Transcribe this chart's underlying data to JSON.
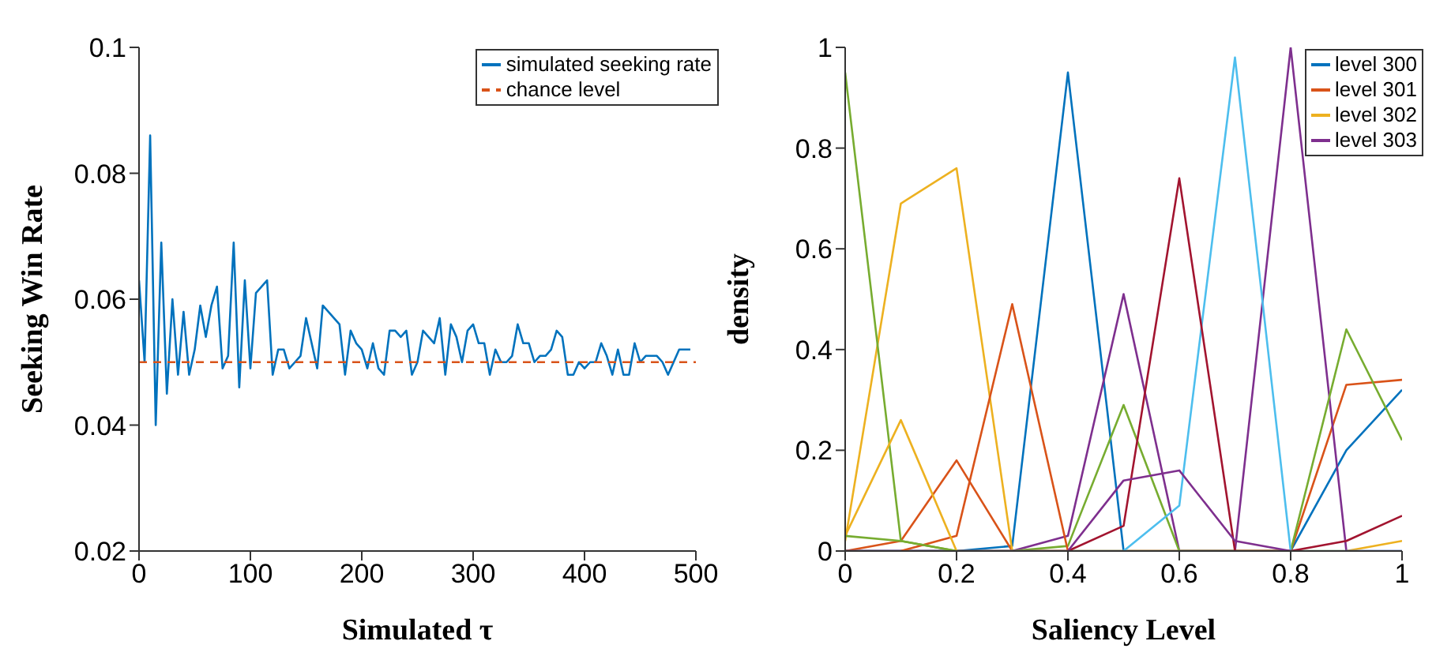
{
  "chart_data": [
    {
      "type": "line",
      "xlabel": "Simulated τ",
      "ylabel": "Seeking Win Rate",
      "xlim": [
        0,
        500
      ],
      "xticks": [
        0,
        100,
        200,
        300,
        400,
        500
      ],
      "ylim": [
        0.02,
        0.1
      ],
      "yticks": [
        0.02,
        0.04,
        0.06,
        0.08,
        0.1
      ],
      "grid": false,
      "legend": "top right",
      "marker": "none",
      "series": [
        {
          "name": "simulated seeking rate",
          "color": "#0072bd",
          "line_style": "solid",
          "x": [
            0,
            5,
            10,
            15,
            20,
            25,
            30,
            35,
            40,
            45,
            50,
            55,
            60,
            65,
            70,
            75,
            80,
            85,
            90,
            95,
            100,
            105,
            110,
            115,
            120,
            125,
            130,
            135,
            140,
            145,
            150,
            155,
            160,
            165,
            170,
            175,
            180,
            185,
            190,
            195,
            200,
            205,
            210,
            215,
            220,
            225,
            230,
            235,
            240,
            245,
            250,
            255,
            260,
            265,
            270,
            275,
            280,
            285,
            290,
            295,
            300,
            305,
            310,
            315,
            320,
            325,
            330,
            335,
            340,
            345,
            350,
            355,
            360,
            365,
            370,
            375,
            380,
            385,
            390,
            395,
            400,
            405,
            410,
            415,
            420,
            425,
            430,
            435,
            440,
            445,
            450,
            455,
            460,
            465,
            470,
            475,
            480,
            485,
            490,
            495
          ],
          "values": [
            0.063,
            0.05,
            0.086,
            0.04,
            0.069,
            0.045,
            0.06,
            0.048,
            0.058,
            0.048,
            0.052,
            0.059,
            0.054,
            0.059,
            0.062,
            0.049,
            0.051,
            0.069,
            0.046,
            0.063,
            0.049,
            0.061,
            0.062,
            0.063,
            0.048,
            0.052,
            0.052,
            0.049,
            0.05,
            0.051,
            0.057,
            0.053,
            0.049,
            0.059,
            0.058,
            0.057,
            0.056,
            0.048,
            0.055,
            0.053,
            0.052,
            0.049,
            0.053,
            0.049,
            0.048,
            0.055,
            0.055,
            0.054,
            0.055,
            0.048,
            0.05,
            0.055,
            0.054,
            0.053,
            0.057,
            0.048,
            0.056,
            0.054,
            0.05,
            0.055,
            0.056,
            0.053,
            0.053,
            0.048,
            0.052,
            0.05,
            0.05,
            0.051,
            0.056,
            0.053,
            0.053,
            0.05,
            0.051,
            0.051,
            0.052,
            0.055,
            0.054,
            0.048,
            0.048,
            0.05,
            0.049,
            0.05,
            0.05,
            0.053,
            0.051,
            0.048,
            0.052,
            0.048,
            0.048,
            0.053,
            0.05,
            0.051,
            0.051,
            0.051,
            0.05,
            0.048,
            0.05,
            0.052,
            0.052,
            0.052
          ]
        },
        {
          "name": "chance level",
          "color": "#d95319",
          "line_style": "dashed",
          "x": [
            0,
            500
          ],
          "values": [
            0.05,
            0.05
          ]
        }
      ]
    },
    {
      "type": "line",
      "xlabel": "Saliency Level",
      "ylabel": "density",
      "x": [
        0,
        0.1,
        0.2,
        0.3,
        0.4,
        0.5,
        0.6,
        0.7,
        0.8,
        0.9,
        1
      ],
      "xlim": [
        0,
        1
      ],
      "xticks": [
        0,
        0.2,
        0.4,
        0.6,
        0.8,
        1
      ],
      "ylim": [
        0,
        1
      ],
      "yticks": [
        0,
        0.2,
        0.4,
        0.6,
        0.8,
        1
      ],
      "grid": false,
      "legend": "top right",
      "marker": "none",
      "line_style": "solid",
      "series": [
        {
          "name": "level 300",
          "color": "#0072bd",
          "values": [
            0,
            0,
            0,
            0.01,
            0.95,
            0,
            0,
            0,
            0,
            0.2,
            0.32
          ]
        },
        {
          "name": "level 301",
          "color": "#d95319",
          "values": [
            0,
            0.02,
            0.18,
            0,
            0,
            0,
            0,
            0,
            0,
            0.33,
            0.34
          ]
        },
        {
          "name": "level 302",
          "color": "#edb120",
          "values": [
            0.02,
            0.69,
            0.76,
            0,
            0,
            0,
            0,
            0,
            0,
            0,
            0.02
          ]
        },
        {
          "name": "level 303",
          "color": "#7e2f8e",
          "values": [
            0,
            0,
            0,
            0,
            0.03,
            0.51,
            0,
            0,
            1,
            0,
            0
          ]
        },
        {
          "color": "#77ac30",
          "values": [
            0.95,
            0.02,
            0,
            0,
            0.01,
            0.29,
            0,
            0,
            0,
            0.44,
            0.22
          ]
        },
        {
          "color": "#4dbeee",
          "values": [
            0,
            0,
            0,
            0,
            0,
            0,
            0.09,
            0.98,
            0,
            0,
            0
          ]
        },
        {
          "color": "#a2142f",
          "values": [
            0,
            0,
            0,
            0,
            0,
            0.05,
            0.74,
            0,
            0,
            0.02,
            0.07
          ]
        },
        {
          "color": "#d95319",
          "values": [
            null,
            0,
            0.03,
            0.49,
            0,
            null,
            null,
            null,
            null,
            null,
            null
          ]
        },
        {
          "color": "#edb120",
          "values": [
            0.03,
            0.26,
            0,
            null,
            null,
            null,
            null,
            null,
            null,
            null,
            null
          ]
        },
        {
          "color": "#7e2f8e",
          "values": [
            null,
            null,
            null,
            null,
            0,
            0.14,
            0.16,
            0.02,
            0,
            null,
            null
          ]
        },
        {
          "color": "#77ac30",
          "values": [
            0.03,
            0.02,
            0,
            null,
            null,
            null,
            null,
            null,
            null,
            null,
            null
          ]
        }
      ]
    }
  ]
}
